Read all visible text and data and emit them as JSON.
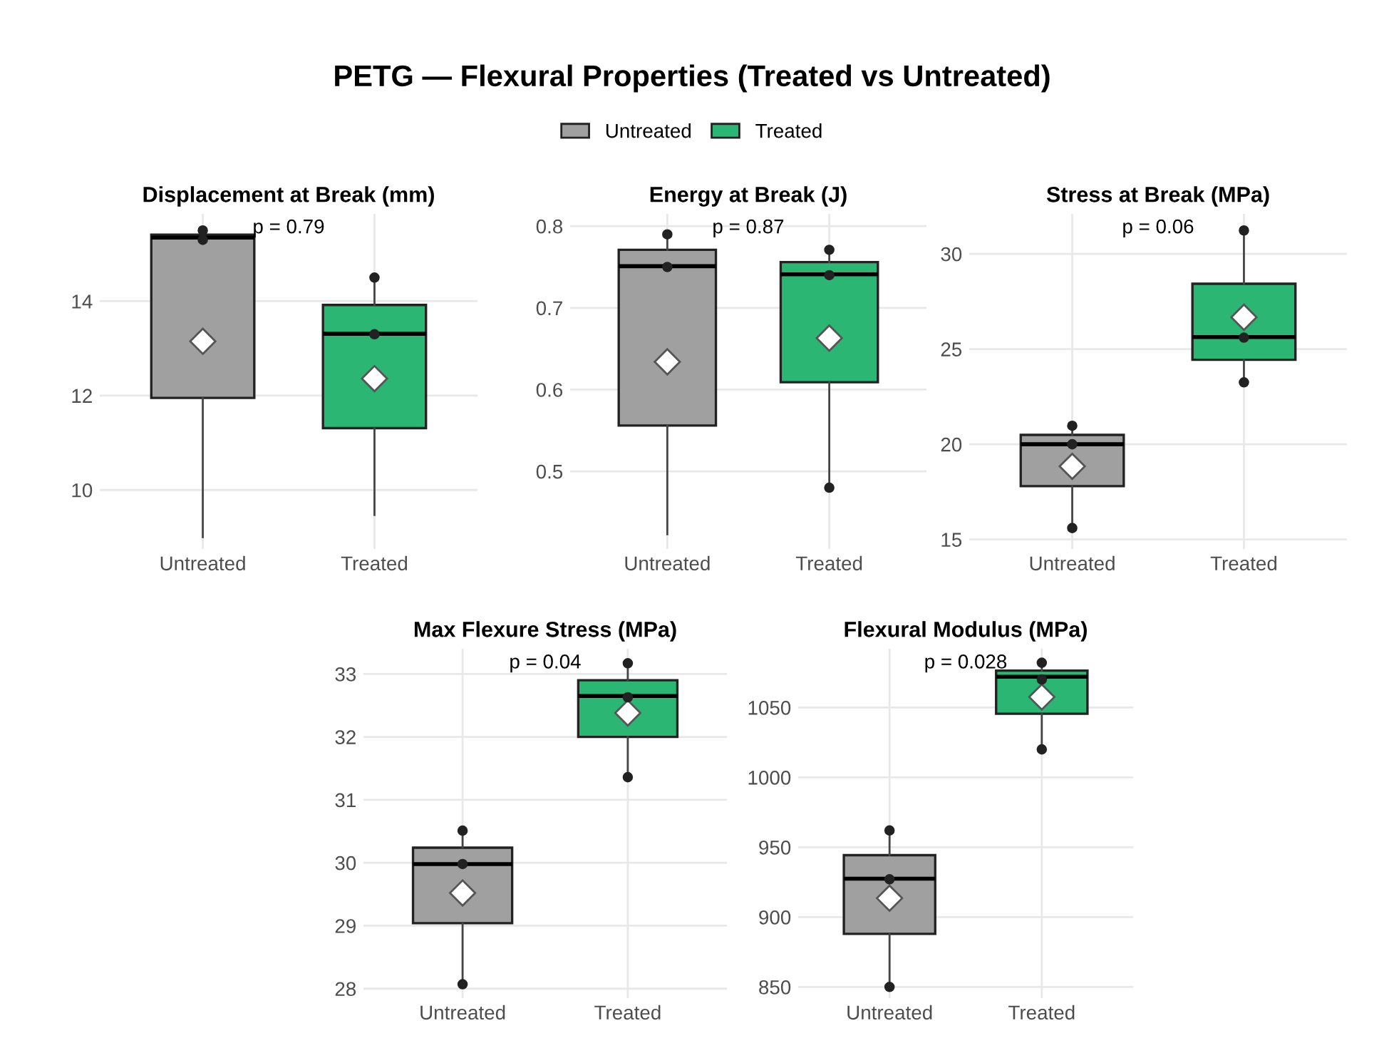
{
  "chart_data": [
    {
      "type": "other",
      "title": "PETG — Flexural Properties (Treated vs Untreated)"
    },
    {
      "type": "box",
      "title": "Displacement at Break (mm)",
      "categories": [
        "Untreated",
        "Treated"
      ],
      "ylim": [
        8.75,
        15.85
      ],
      "yticks": [
        10,
        12,
        14
      ],
      "grid": true,
      "legend": "top",
      "annotations": [
        "p = 0.79"
      ],
      "series": [
        {
          "name": "Untreated",
          "color": "#a0a0a0",
          "boxes": [
            {
              "low": 9.0,
              "q1": 11.95,
              "median": 15.35,
              "q3": 15.41,
              "high": 15.5,
              "mean": 13.15
            },
            null
          ]
        },
        {
          "name": "Treated",
          "color": "#2bb673",
          "boxes": [
            null,
            {
              "low": 9.47,
              "q1": 11.31,
              "median": 13.31,
              "q3": 13.92,
              "high": 14.51,
              "mean": 12.36
            }
          ]
        },
        {
          "type": "scatter",
          "color": "#222222",
          "marker": "circle",
          "x": [
            "Untreated",
            "Untreated",
            "Treated",
            "Treated"
          ],
          "values": [
            15.5,
            15.3,
            14.5,
            13.3
          ]
        }
      ]
    },
    {
      "type": "box",
      "title": "Energy at Break (J)",
      "categories": [
        "Untreated",
        "Treated"
      ],
      "ylim": [
        0.405,
        0.815
      ],
      "yticks": [
        0.5,
        0.6,
        0.7,
        0.8
      ],
      "grid": true,
      "annotations": [
        "p = 0.87"
      ],
      "series": [
        {
          "color": "#a0a0a0",
          "boxes": [
            {
              "low": 0.423,
              "q1": 0.556,
              "median": 0.751,
              "q3": 0.771,
              "high": 0.79,
              "mean": 0.634
            },
            null
          ]
        },
        {
          "color": "#2bb673",
          "boxes": [
            null,
            {
              "low": 0.48,
              "q1": 0.609,
              "median": 0.741,
              "q3": 0.756,
              "high": 0.771,
              "mean": 0.663
            }
          ]
        },
        {
          "type": "scatter",
          "color": "#222222",
          "marker": "circle",
          "x": [
            "Untreated",
            "Untreated",
            "Treated",
            "Treated",
            "Treated"
          ],
          "values": [
            0.79,
            0.75,
            0.771,
            0.74,
            0.48
          ]
        }
      ]
    },
    {
      "type": "box",
      "title": "Stress at Break (MPa)",
      "categories": [
        "Untreated",
        "Treated"
      ],
      "ylim": [
        14.5,
        32.1
      ],
      "yticks": [
        15,
        20,
        25,
        30
      ],
      "grid": true,
      "annotations": [
        "p = 0.06"
      ],
      "series": [
        {
          "color": "#a0a0a0",
          "boxes": [
            {
              "low": 15.67,
              "q1": 17.8,
              "median": 20.0,
              "q3": 20.49,
              "high": 20.97,
              "mean": 18.84
            },
            null
          ]
        },
        {
          "color": "#2bb673",
          "boxes": [
            null,
            {
              "low": 23.3,
              "q1": 24.44,
              "median": 25.63,
              "q3": 28.43,
              "high": 31.23,
              "mean": 26.67
            }
          ]
        },
        {
          "type": "scatter",
          "color": "#222222",
          "marker": "circle",
          "x": [
            "Untreated",
            "Untreated",
            "Untreated",
            "Treated",
            "Treated",
            "Treated"
          ],
          "values": [
            20.97,
            20.0,
            15.6,
            31.23,
            25.6,
            23.25
          ]
        }
      ]
    },
    {
      "type": "box",
      "title": "Max Flexure Stress (MPa)",
      "categories": [
        "Untreated",
        "Treated"
      ],
      "ylim": [
        27.85,
        33.4
      ],
      "yticks": [
        28,
        29,
        30,
        31,
        32,
        33
      ],
      "grid": true,
      "annotations": [
        "p = 0.04"
      ],
      "series": [
        {
          "color": "#a0a0a0",
          "boxes": [
            {
              "low": 28.08,
              "q1": 29.04,
              "median": 29.98,
              "q3": 30.24,
              "high": 30.5,
              "mean": 29.52
            },
            null
          ]
        },
        {
          "color": "#2bb673",
          "boxes": [
            null,
            {
              "low": 31.36,
              "q1": 32.0,
              "median": 32.65,
              "q3": 32.9,
              "high": 33.17,
              "mean": 32.38
            }
          ]
        },
        {
          "type": "scatter",
          "color": "#222222",
          "marker": "circle",
          "x": [
            "Untreated",
            "Untreated",
            "Untreated",
            "Treated",
            "Treated",
            "Treated"
          ],
          "values": [
            30.51,
            29.98,
            28.07,
            33.17,
            32.63,
            31.36
          ]
        }
      ]
    },
    {
      "type": "box",
      "title": "Flexural Modulus (MPa)",
      "categories": [
        "Untreated",
        "Treated"
      ],
      "ylim": [
        842,
        1092
      ],
      "yticks": [
        850,
        900,
        950,
        1000,
        1050
      ],
      "grid": true,
      "annotations": [
        "p = 0.028"
      ],
      "series": [
        {
          "color": "#a0a0a0",
          "boxes": [
            {
              "low": 850.7,
              "q1": 888,
              "median": 927.5,
              "q3": 944.3,
              "high": 962,
              "mean": 913.5
            },
            null
          ]
        },
        {
          "color": "#2bb673",
          "boxes": [
            null,
            {
              "low": 1020.5,
              "q1": 1045.5,
              "median": 1072,
              "q3": 1076.4,
              "high": 1082,
              "mean": 1057.5
            }
          ]
        },
        {
          "type": "scatter",
          "color": "#222222",
          "marker": "circle",
          "x": [
            "Untreated",
            "Untreated",
            "Untreated",
            "Treated",
            "Treated",
            "Treated"
          ],
          "values": [
            962,
            927,
            850,
            1082,
            1070,
            1020
          ]
        }
      ]
    }
  ]
}
